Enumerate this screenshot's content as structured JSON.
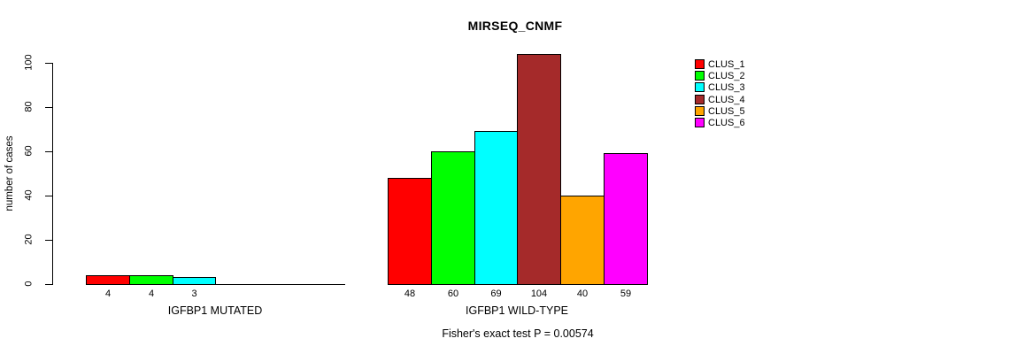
{
  "chart_data": {
    "type": "bar",
    "title": "MIRSEQ_CNMF",
    "ylabel": "number of cases",
    "ylim": [
      0,
      100
    ],
    "yticks": [
      0,
      20,
      40,
      60,
      80,
      100
    ],
    "grid": false,
    "legend_position": "right",
    "series": [
      {
        "name": "CLUS_1",
        "color": "#FF0000"
      },
      {
        "name": "CLUS_2",
        "color": "#00FF00"
      },
      {
        "name": "CLUS_3",
        "color": "#00FFFF"
      },
      {
        "name": "CLUS_4",
        "color": "#A52A2A"
      },
      {
        "name": "CLUS_5",
        "color": "#FFA500"
      },
      {
        "name": "CLUS_6",
        "color": "#FF00FF"
      }
    ],
    "groups": [
      {
        "label": "IGFBP1 MUTATED",
        "values": [
          4,
          4,
          3,
          0,
          0,
          0
        ]
      },
      {
        "label": "IGFBP1 WILD-TYPE",
        "values": [
          48,
          60,
          69,
          104,
          40,
          59
        ]
      }
    ],
    "annotation": "Fisher's exact test P = 0.00574"
  }
}
